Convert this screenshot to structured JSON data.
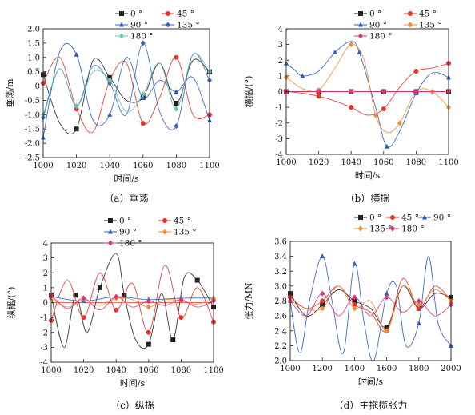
{
  "chart_data": [
    {
      "type": "line",
      "caption": "（a）垂荡",
      "ylabel": "垂荡/m",
      "xlabel": "时间/s",
      "xlim": [
        1000,
        1100
      ],
      "ylim": [
        -2.5,
        2.0
      ],
      "xticks": [
        1000,
        1020,
        1040,
        1060,
        1080,
        1100
      ],
      "yticks": [
        -2.5,
        -2.0,
        -1.5,
        -1.0,
        -0.5,
        0,
        0.5,
        1.0,
        1.5,
        2.0
      ],
      "ytick_labels": [
        "-2.5",
        "-2.0",
        "-1.5",
        "-1.0",
        "-0.5",
        "0",
        "0.5",
        "1.0",
        "1.5",
        "2.0"
      ],
      "legend": {
        "placement": "top-right",
        "columns": 2
      },
      "series": [
        {
          "name": "0 °",
          "color": "#222222",
          "marker": "square",
          "x": [
            1000,
            1010,
            1020,
            1030,
            1040,
            1050,
            1060,
            1070,
            1080,
            1090,
            1100
          ],
          "y": [
            0.4,
            -1.3,
            -1.5,
            0.9,
            0.3,
            -0.5,
            -0.4,
            0.8,
            -0.6,
            0.9,
            0.5
          ]
        },
        {
          "name": "45 °",
          "color": "#e8312a",
          "marker": "circle",
          "x": [
            1000,
            1010,
            1020,
            1030,
            1040,
            1050,
            1060,
            1070,
            1080,
            1090,
            1100
          ],
          "y": [
            0.1,
            1.0,
            -0.8,
            -1.6,
            0.2,
            0.8,
            -1.3,
            -0.4,
            1.0,
            -1.0,
            -1.0
          ]
        },
        {
          "name": "90 °",
          "color": "#2c5cc5",
          "marker": "triangle",
          "x": [
            1000,
            1010,
            1020,
            1030,
            1040,
            1050,
            1060,
            1070,
            1080,
            1090,
            1100
          ],
          "y": [
            -1.8,
            1.2,
            1.1,
            -1.2,
            -1.0,
            1.0,
            -0.4,
            0.2,
            -0.2,
            0.3,
            -1.2
          ]
        },
        {
          "name": "135 °",
          "color": "#3a63c9",
          "marker": "diamond",
          "x": [
            1000,
            1010,
            1020,
            1030,
            1040,
            1050,
            1060,
            1070,
            1080,
            1090,
            1100
          ],
          "y": [
            -1.1,
            0.6,
            -0.7,
            0.7,
            0.1,
            -1.0,
            1.5,
            -0.9,
            -1.4,
            1.1,
            0.2
          ]
        },
        {
          "name": "180 °",
          "color": "#5fc4a8",
          "marker": "diamond",
          "x": [
            1000,
            1010,
            1020,
            1030,
            1040,
            1050,
            1060,
            1070,
            1080,
            1090,
            1100
          ],
          "y": [
            -1.0,
            0.6,
            -0.7,
            0.5,
            0.2,
            -0.9,
            -0.3,
            0.8,
            -0.8,
            1.1,
            0.5
          ]
        }
      ]
    },
    {
      "type": "line",
      "caption": "（b）横摇",
      "ylabel": "横摇/(°)",
      "xlabel": "时间/s",
      "xlim": [
        1000,
        1100
      ],
      "ylim": [
        -4,
        4
      ],
      "xticks": [
        1000,
        1020,
        1040,
        1060,
        1080,
        1100
      ],
      "yticks": [
        -4,
        -3,
        -2,
        -1,
        0,
        1,
        2,
        3,
        4
      ],
      "ytick_labels": [
        "-4",
        "-3",
        "-2",
        "-1",
        "0",
        "1",
        "2",
        "3",
        "4"
      ],
      "legend": {
        "placement": "top-right",
        "columns": 2
      },
      "series": [
        {
          "name": "0 °",
          "color": "#222222",
          "marker": "square",
          "x": [
            1000,
            1020,
            1040,
            1060,
            1080,
            1100
          ],
          "y": [
            0,
            0,
            0,
            0,
            0,
            0
          ]
        },
        {
          "name": "45 °",
          "color": "#e8312a",
          "marker": "circle",
          "x": [
            1000,
            1010,
            1020,
            1030,
            1040,
            1050,
            1060,
            1070,
            1080,
            1090,
            1100
          ],
          "y": [
            0.0,
            -0.1,
            -0.3,
            -0.6,
            -1.0,
            -1.5,
            -1.1,
            0.3,
            1.3,
            1.5,
            1.8
          ]
        },
        {
          "name": "90 °",
          "color": "#2c5cc5",
          "marker": "triangle",
          "x": [
            1000,
            1005,
            1010,
            1020,
            1030,
            1040,
            1045,
            1055,
            1062,
            1070,
            1080,
            1090,
            1100
          ],
          "y": [
            1.8,
            1.4,
            1.0,
            1.3,
            2.5,
            3.2,
            2.5,
            -1.0,
            -3.5,
            -2.5,
            -0.1,
            1.2,
            0.9
          ]
        },
        {
          "name": "135 °",
          "color": "#f08a2a",
          "marker": "diamond",
          "x": [
            1000,
            1010,
            1020,
            1030,
            1040,
            1048,
            1055,
            1062,
            1070,
            1080,
            1090,
            1100
          ],
          "y": [
            0.9,
            0.2,
            0.1,
            1.5,
            3.0,
            2.0,
            -1.5,
            -2.6,
            -2.0,
            0.0,
            0.0,
            -1.0
          ]
        },
        {
          "name": "180 °",
          "color": "#e0307a",
          "marker": "diamond",
          "x": [
            1000,
            1020,
            1040,
            1060,
            1080,
            1100
          ],
          "y": [
            0,
            0,
            0,
            0,
            0,
            0
          ]
        }
      ]
    },
    {
      "type": "line",
      "caption": "（c）纵摇",
      "ylabel": "纵摇/(°)",
      "xlabel": "时间/s",
      "xlim": [
        1000,
        1100
      ],
      "ylim": [
        -4,
        4
      ],
      "xticks": [
        1000,
        1020,
        1040,
        1060,
        1080,
        1100
      ],
      "yticks": [
        -4,
        -3,
        -2,
        -1,
        0,
        1,
        2,
        3,
        4
      ],
      "ytick_labels": [
        "-4",
        "-3",
        "-2",
        "-1",
        "0",
        "1",
        "2",
        "3",
        "4"
      ],
      "legend": {
        "placement": "top-right",
        "columns": 2
      },
      "series": [
        {
          "name": "0 °",
          "color": "#222222",
          "marker": "square",
          "x": [
            1000,
            1008,
            1015,
            1022,
            1030,
            1040,
            1045,
            1052,
            1060,
            1068,
            1075,
            1082,
            1090,
            1100
          ],
          "y": [
            0.5,
            -3.0,
            0.5,
            -2.0,
            1.0,
            3.3,
            0.5,
            -2.5,
            -2.8,
            0.6,
            -2.5,
            1.7,
            1.5,
            -0.3
          ]
        },
        {
          "name": "45 °",
          "color": "#e8312a",
          "marker": "circle",
          "x": [
            1000,
            1010,
            1020,
            1030,
            1040,
            1050,
            1060,
            1070,
            1080,
            1090,
            1100
          ],
          "y": [
            -1.2,
            1.5,
            -1.0,
            2.0,
            -0.5,
            1.3,
            -2.0,
            2.5,
            -1.0,
            1.0,
            -1.3
          ]
        },
        {
          "name": "90 °",
          "color": "#2c5cc5",
          "marker": "triangle",
          "x": [
            1000,
            1020,
            1040,
            1060,
            1080,
            1100
          ],
          "y": [
            0.4,
            0.1,
            0.4,
            0.2,
            0.3,
            0.3
          ]
        },
        {
          "name": "135 °",
          "color": "#f08a2a",
          "marker": "diamond",
          "x": [
            1000,
            1010,
            1020,
            1030,
            1040,
            1050,
            1060,
            1070,
            1080,
            1090,
            1100
          ],
          "y": [
            0.3,
            -0.3,
            0.2,
            -0.2,
            0.3,
            0.2,
            -0.3,
            0.2,
            0.1,
            -0.1,
            0.3
          ]
        },
        {
          "name": "180 °",
          "color": "#e0307a",
          "marker": "diamond",
          "x": [
            1000,
            1010,
            1020,
            1030,
            1040,
            1050,
            1060,
            1070,
            1080,
            1090,
            1100
          ],
          "y": [
            0.5,
            -0.4,
            0.3,
            -0.5,
            0.4,
            -0.3,
            0.1,
            -0.2,
            0.2,
            -0.3,
            0.1
          ]
        }
      ]
    },
    {
      "type": "line",
      "caption": "（d）主拖揽张力",
      "ylabel": "张力/MN",
      "xlabel": "时间/s",
      "xlim": [
        1000,
        2000
      ],
      "ylim": [
        2.0,
        3.6
      ],
      "xticks": [
        1000,
        1200,
        1400,
        1600,
        1800,
        2000
      ],
      "yticks": [
        2.0,
        2.2,
        2.4,
        2.6,
        2.8,
        3.0,
        3.2,
        3.4,
        3.6
      ],
      "ytick_labels": [
        "2.0",
        "2.2",
        "2.4",
        "2.6",
        "2.8",
        "3.0",
        "3.2",
        "3.4",
        "3.6"
      ],
      "legend": {
        "placement": "top-right",
        "columns": 3
      },
      "series": [
        {
          "name": "0 °",
          "color": "#222222",
          "marker": "square",
          "x": [
            1000,
            1100,
            1200,
            1300,
            1400,
            1500,
            1600,
            1700,
            1800,
            1900,
            2000
          ],
          "y": [
            2.9,
            2.6,
            2.75,
            2.95,
            2.8,
            2.7,
            2.45,
            3.0,
            2.7,
            2.9,
            2.85
          ]
        },
        {
          "name": "45 °",
          "color": "#e8312a",
          "marker": "circle",
          "x": [
            1000,
            1100,
            1200,
            1300,
            1400,
            1500,
            1600,
            1700,
            1800,
            1900,
            2000
          ],
          "y": [
            2.85,
            2.7,
            2.8,
            3.0,
            2.75,
            2.65,
            2.4,
            3.1,
            2.7,
            3.0,
            2.8
          ]
        },
        {
          "name": "90 °",
          "color": "#2c5cc5",
          "marker": "triangle",
          "x": [
            1000,
            1060,
            1120,
            1200,
            1260,
            1330,
            1400,
            1460,
            1520,
            1600,
            1660,
            1720,
            1800,
            1860,
            1920,
            2000
          ],
          "y": [
            2.8,
            2.1,
            2.8,
            3.4,
            2.8,
            2.1,
            3.3,
            2.5,
            2.0,
            2.9,
            3.0,
            2.2,
            2.5,
            3.4,
            2.5,
            2.2
          ]
        },
        {
          "name": "135 °",
          "color": "#f08a2a",
          "marker": "diamond",
          "x": [
            1000,
            1100,
            1200,
            1300,
            1400,
            1500,
            1600,
            1700,
            1800,
            1900,
            2000
          ],
          "y": [
            2.8,
            2.7,
            2.7,
            3.0,
            2.7,
            2.8,
            2.4,
            3.0,
            2.75,
            2.95,
            2.8
          ]
        },
        {
          "name": "180 °",
          "color": "#e0307a",
          "marker": "diamond",
          "x": [
            1000,
            1100,
            1200,
            1300,
            1400,
            1500,
            1600,
            1700,
            1800,
            1900,
            2000
          ],
          "y": [
            2.8,
            2.6,
            2.9,
            2.6,
            2.85,
            2.6,
            2.85,
            2.65,
            2.8,
            2.6,
            2.75
          ]
        }
      ]
    }
  ]
}
